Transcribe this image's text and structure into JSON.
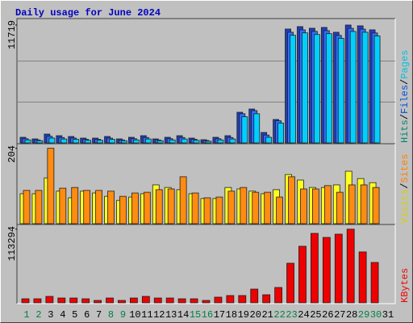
{
  "title": "Daily usage for June 2024",
  "legend_separator": "/",
  "chart_data": [
    {
      "type": "bar",
      "ylim": [
        0,
        12200
      ],
      "yticks": [
        11719
      ],
      "series": [
        {
          "name": "Hits",
          "color": "#1f3fc0",
          "label_color": "#00866a",
          "values": [
            560,
            400,
            880,
            720,
            640,
            480,
            480,
            640,
            400,
            560,
            720,
            400,
            560,
            720,
            480,
            320,
            560,
            720,
            3050,
            3370,
            1040,
            2330,
            11320,
            11560,
            11400,
            11480,
            11000,
            11719,
            11640,
            11240,
            null
          ]
        },
        {
          "name": "Files",
          "color": "#2f6fff",
          "label_color": "#0050e0",
          "values": [
            420,
            300,
            660,
            540,
            480,
            360,
            360,
            480,
            300,
            420,
            540,
            300,
            420,
            540,
            360,
            240,
            420,
            540,
            2900,
            3210,
            780,
            2200,
            11000,
            11240,
            11090,
            11160,
            10690,
            11390,
            11310,
            10930,
            null
          ]
        },
        {
          "name": "Pages",
          "color": "#00d0ff",
          "label_color": "#00c0e0",
          "values": [
            300,
            220,
            480,
            390,
            350,
            260,
            260,
            350,
            220,
            300,
            390,
            220,
            300,
            390,
            260,
            170,
            300,
            390,
            2600,
            2900,
            560,
            1980,
            10700,
            10940,
            10780,
            10860,
            10400,
            11080,
            11000,
            10630,
            null
          ]
        }
      ]
    },
    {
      "type": "bar",
      "ylim": [
        0,
        212
      ],
      "yticks": [
        204
      ],
      "series": [
        {
          "name": "Visits",
          "color": "#ffff20",
          "label_color": "#d8d000",
          "values": [
            81,
            81,
            124,
            88,
            70,
            88,
            83,
            74,
            63,
            72,
            81,
            105,
            98,
            92,
            81,
            68,
            68,
            98,
            94,
            88,
            81,
            92,
            133,
            118,
            98,
            98,
            105,
            142,
            122,
            111,
            null
          ]
        },
        {
          "name": "Sites",
          "color": "#ff8c10",
          "label_color": "#ff8000",
          "values": [
            90,
            90,
            204,
            96,
            98,
            90,
            90,
            88,
            74,
            83,
            85,
            92,
            94,
            127,
            83,
            70,
            72,
            88,
            98,
            85,
            85,
            72,
            127,
            94,
            94,
            103,
            85,
            105,
            105,
            98,
            null
          ]
        }
      ]
    },
    {
      "type": "bar",
      "ylim": [
        0,
        118000
      ],
      "yticks": [
        113294
      ],
      "categories": [
        "1",
        "2",
        "3",
        "4",
        "5",
        "6",
        "7",
        "8",
        "9",
        "10",
        "11",
        "12",
        "13",
        "14",
        "15",
        "16",
        "17",
        "18",
        "19",
        "20",
        "21",
        "22",
        "23",
        "24",
        "25",
        "26",
        "27",
        "28",
        "29",
        "30",
        "31"
      ],
      "category_colors": [
        "#008040",
        "#008040",
        "#000000",
        "#000000",
        "#000000",
        "#000000",
        "#000000",
        "#008040",
        "#008040",
        "#000000",
        "#000000",
        "#000000",
        "#000000",
        "#000000",
        "#008040",
        "#008040",
        "#000000",
        "#000000",
        "#000000",
        "#000000",
        "#000000",
        "#008040",
        "#008040",
        "#000000",
        "#000000",
        "#000000",
        "#000000",
        "#000000",
        "#008040",
        "#008040",
        "#000000"
      ],
      "series": [
        {
          "name": "KBytes",
          "color": "#ee0000",
          "label_color": "#ee0000",
          "values": [
            6200,
            6200,
            9900,
            7400,
            7400,
            6200,
            3700,
            7400,
            3700,
            7400,
            9900,
            7400,
            7400,
            6200,
            6200,
            3700,
            8700,
            11200,
            11200,
            21100,
            12400,
            23600,
            60900,
            87000,
            106800,
            100600,
            105600,
            113294,
            78300,
            62100,
            null
          ]
        }
      ]
    }
  ]
}
